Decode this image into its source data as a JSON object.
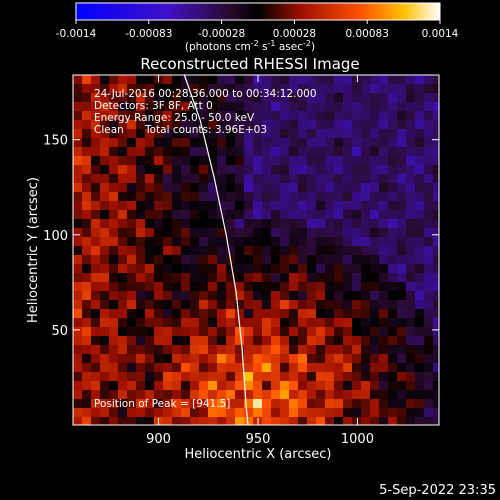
{
  "chart_data": {
    "type": "heatmap",
    "title": "Reconstructed RHESSI Image",
    "xlabel": "Heliocentric X (arcsec)",
    "ylabel": "Heliocentric Y (arcsec)",
    "xlim": [
      857,
      1041
    ],
    "ylim": [
      0,
      184
    ],
    "x_ticks": [
      900,
      950,
      1000
    ],
    "y_ticks": [
      50,
      100,
      150
    ],
    "limb_curve": [
      [
        913,
        184
      ],
      [
        921,
        160
      ],
      [
        928,
        130
      ],
      [
        934,
        100
      ],
      [
        939,
        70
      ],
      [
        942,
        40
      ],
      [
        944,
        10
      ],
      [
        945,
        0
      ]
    ],
    "colorbar": {
      "ticks": [
        "-0.0014",
        "-0.00083",
        "-0.00028",
        "0.00028",
        "0.00083",
        "0.0014"
      ],
      "range": [
        -0.0014,
        0.0014
      ],
      "units_label": "(photons cm",
      "units_label_2": "s",
      "units_label_3": "asec",
      "units_sup_1": "-2",
      "units_sup_2": "-1",
      "units_sup_3": "-2",
      "units_close": ")"
    },
    "annotations": {
      "time": "24-Jul-2016 00:28:36.000 to 00:34:12.000",
      "detectors": "Detectors: 3F 8F, Att 0",
      "energy": "Energy Range: 25.0 - 50.0 keV",
      "clean_label": "Clean",
      "total_counts": "Total counts: 3.96E+03",
      "peak": "Position of Peak = [",
      "peak_value": "941.5",
      "peak_close": "]"
    }
  },
  "footer": "5-Sep-2022 23:35"
}
